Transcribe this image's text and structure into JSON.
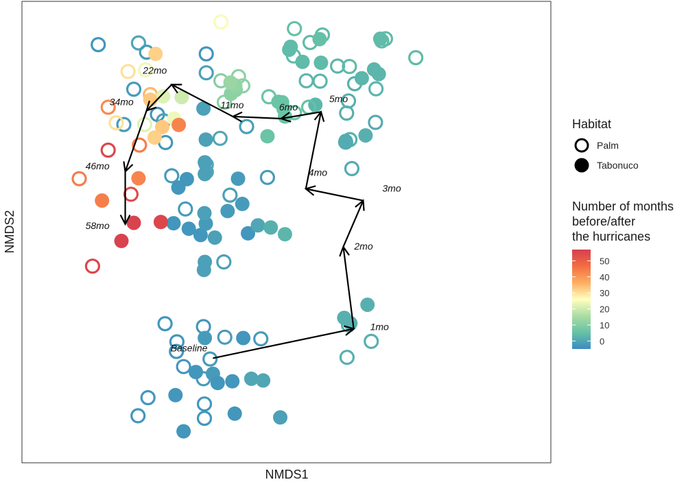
{
  "chart_data": {
    "type": "scatter",
    "xlabel": "NMDS1",
    "ylabel": "NMDS2",
    "xlim": [
      0,
      1
    ],
    "ylim": [
      0,
      1
    ],
    "axis_ticks_shown": false,
    "grid": false,
    "legend_habitat": {
      "title": "Habitat",
      "items": [
        {
          "label": "Palm",
          "shape": "open-circle"
        },
        {
          "label": "Tabonuco",
          "shape": "filled-circle"
        }
      ]
    },
    "legend_colorbar": {
      "title_lines": [
        "Number of months",
        "before/after",
        "the hurricanes"
      ],
      "min": -5,
      "max": 57,
      "ticks": [
        0,
        10,
        20,
        30,
        40,
        50
      ],
      "tick_labels": [
        "0",
        "10",
        "20",
        "30",
        "40",
        "50"
      ]
    },
    "colors": {
      "stops": [
        "#3B8BC2",
        "#66C2A5",
        "#ABDDA4",
        "#FFFFBF",
        "#FDAE61",
        "#F46D43",
        "#D53E4F"
      ],
      "axis": "#333333",
      "arrow": "#000000"
    },
    "points": [
      {
        "x": 0.103,
        "y": 0.946,
        "m": -3,
        "h": "Palm"
      },
      {
        "x": 0.188,
        "y": 0.95,
        "m": 0,
        "h": "Palm"
      },
      {
        "x": 0.205,
        "y": 0.928,
        "m": -2,
        "h": "Palm"
      },
      {
        "x": 0.331,
        "y": 0.924,
        "m": -3,
        "h": "Palm"
      },
      {
        "x": 0.331,
        "y": 0.879,
        "m": -1,
        "h": "Palm"
      },
      {
        "x": 0.178,
        "y": 0.84,
        "m": -2,
        "h": "Palm"
      },
      {
        "x": 0.228,
        "y": 0.78,
        "m": -3,
        "h": "Palm"
      },
      {
        "x": 0.157,
        "y": 0.756,
        "m": -2,
        "h": "Palm"
      },
      {
        "x": 0.241,
        "y": 0.765,
        "m": -1,
        "h": "Palm"
      },
      {
        "x": 0.245,
        "y": 0.713,
        "m": -3,
        "h": "Palm"
      },
      {
        "x": 0.258,
        "y": 0.634,
        "m": -2,
        "h": "Palm"
      },
      {
        "x": 0.331,
        "y": 0.66,
        "m": 0,
        "h": "Palm"
      },
      {
        "x": 0.36,
        "y": 0.723,
        "m": 0,
        "h": "Palm"
      },
      {
        "x": 0.416,
        "y": 0.751,
        "m": -1,
        "h": "Palm"
      },
      {
        "x": 0.46,
        "y": 0.63,
        "m": -2,
        "h": "Palm"
      },
      {
        "x": 0.287,
        "y": 0.555,
        "m": -2,
        "h": "Palm"
      },
      {
        "x": 0.381,
        "y": 0.588,
        "m": -1,
        "h": "Palm"
      },
      {
        "x": 0.294,
        "y": 0.508,
        "m": -3,
        "h": "Tabonuco"
      },
      {
        "x": 0.319,
        "y": 0.493,
        "m": -3,
        "h": "Tabonuco"
      },
      {
        "x": 0.262,
        "y": 0.521,
        "m": -3,
        "h": "Tabonuco"
      },
      {
        "x": 0.33,
        "y": 0.52,
        "m": -2,
        "h": "Tabonuco"
      },
      {
        "x": 0.349,
        "y": 0.487,
        "m": -1,
        "h": "Tabonuco"
      },
      {
        "x": 0.376,
        "y": 0.55,
        "m": -2,
        "h": "Tabonuco"
      },
      {
        "x": 0.419,
        "y": 0.497,
        "m": -3,
        "h": "Tabonuco"
      },
      {
        "x": 0.44,
        "y": 0.516,
        "m": 0,
        "h": "Tabonuco"
      },
      {
        "x": 0.467,
        "y": 0.511,
        "m": 2,
        "h": "Tabonuco"
      },
      {
        "x": 0.497,
        "y": 0.495,
        "m": 3,
        "h": "Tabonuco"
      },
      {
        "x": 0.332,
        "y": 0.643,
        "m": 0,
        "h": "Tabonuco"
      },
      {
        "x": 0.328,
        "y": 0.638,
        "m": -1,
        "h": "Tabonuco"
      },
      {
        "x": 0.327,
        "y": 0.545,
        "m": -1,
        "h": "Tabonuco"
      },
      {
        "x": 0.407,
        "y": 0.567,
        "m": -2,
        "h": "Tabonuco"
      },
      {
        "x": 0.33,
        "y": 0.72,
        "m": -1,
        "h": "Tabonuco"
      },
      {
        "x": 0.328,
        "y": 0.666,
        "m": -1,
        "h": "Tabonuco"
      },
      {
        "x": 0.398,
        "y": 0.627,
        "m": -2,
        "h": "Tabonuco"
      },
      {
        "x": 0.272,
        "y": 0.606,
        "m": -3,
        "h": "Tabonuco"
      },
      {
        "x": 0.29,
        "y": 0.626,
        "m": -3,
        "h": "Tabonuco"
      },
      {
        "x": 0.325,
        "y": 0.794,
        "m": -1,
        "h": "Tabonuco"
      },
      {
        "x": 0.638,
        "y": 0.651,
        "m": 1,
        "h": "Palm"
      },
      {
        "x": 0.634,
        "y": 0.72,
        "m": 2,
        "h": "Palm"
      },
      {
        "x": 0.688,
        "y": 0.761,
        "m": 1,
        "h": "Palm"
      },
      {
        "x": 0.627,
        "y": 0.783,
        "m": 2,
        "h": "Palm"
      },
      {
        "x": 0.644,
        "y": 0.853,
        "m": 2,
        "h": "Palm"
      },
      {
        "x": 0.542,
        "y": 0.86,
        "m": 3,
        "h": "Palm"
      },
      {
        "x": 0.571,
        "y": 0.859,
        "m": 3,
        "h": "Palm"
      },
      {
        "x": 0.608,
        "y": 0.895,
        "m": 3,
        "h": "Palm"
      },
      {
        "x": 0.631,
        "y": 0.812,
        "m": 2,
        "h": "Palm"
      },
      {
        "x": 0.625,
        "y": 0.714,
        "m": 1,
        "h": "Palm"
      },
      {
        "x": 0.689,
        "y": 0.841,
        "m": 3,
        "h": "Palm"
      },
      {
        "x": 0.709,
        "y": 0.96,
        "m": 4,
        "h": "Palm"
      },
      {
        "x": 0.773,
        "y": 0.915,
        "m": 4,
        "h": "Palm"
      },
      {
        "x": 0.701,
        "y": 0.955,
        "m": 4,
        "h": "Palm"
      },
      {
        "x": 0.625,
        "y": 0.717,
        "m": 1,
        "h": "Tabonuco"
      },
      {
        "x": 0.667,
        "y": 0.73,
        "m": 2,
        "h": "Tabonuco"
      },
      {
        "x": 0.561,
        "y": 0.803,
        "m": 3,
        "h": "Tabonuco"
      },
      {
        "x": 0.695,
        "y": 0.876,
        "m": 3,
        "h": "Tabonuco"
      },
      {
        "x": 0.685,
        "y": 0.887,
        "m": 3,
        "h": "Tabonuco"
      },
      {
        "x": 0.659,
        "y": 0.866,
        "m": 3,
        "h": "Tabonuco"
      },
      {
        "x": 0.573,
        "y": 0.903,
        "m": 4,
        "h": "Tabonuco"
      },
      {
        "x": 0.509,
        "y": 0.941,
        "m": 4,
        "h": "Tabonuco"
      },
      {
        "x": 0.506,
        "y": 0.934,
        "m": 4,
        "h": "Tabonuco"
      },
      {
        "x": 0.534,
        "y": 0.905,
        "m": 4,
        "h": "Tabonuco"
      },
      {
        "x": 0.698,
        "y": 0.96,
        "m": 4,
        "h": "Tabonuco"
      },
      {
        "x": 0.515,
        "y": 0.919,
        "m": 4,
        "h": "Palm"
      },
      {
        "x": 0.55,
        "y": 0.951,
        "m": 4,
        "h": "Palm"
      },
      {
        "x": 0.517,
        "y": 0.984,
        "m": 5,
        "h": "Palm"
      },
      {
        "x": 0.576,
        "y": 0.969,
        "m": 4,
        "h": "Palm"
      },
      {
        "x": 0.633,
        "y": 0.894,
        "m": 4,
        "h": "Palm"
      },
      {
        "x": 0.547,
        "y": 0.797,
        "m": 5,
        "h": "Palm"
      },
      {
        "x": 0.57,
        "y": 0.959,
        "m": 5,
        "h": "Tabonuco"
      },
      {
        "x": 0.491,
        "y": 0.809,
        "m": 6,
        "h": "Tabonuco"
      },
      {
        "x": 0.494,
        "y": 0.793,
        "m": 6,
        "h": "Tabonuco"
      },
      {
        "x": 0.497,
        "y": 0.775,
        "m": 6,
        "h": "Tabonuco"
      },
      {
        "x": 0.483,
        "y": 0.81,
        "m": 6,
        "h": "Tabonuco"
      },
      {
        "x": 0.46,
        "y": 0.728,
        "m": 6,
        "h": "Tabonuco"
      },
      {
        "x": 0.463,
        "y": 0.822,
        "m": 6,
        "h": "Palm"
      },
      {
        "x": 0.517,
        "y": 0.784,
        "m": 6,
        "h": "Palm"
      },
      {
        "x": 0.362,
        "y": 0.86,
        "m": 10,
        "h": "Palm"
      },
      {
        "x": 0.399,
        "y": 0.87,
        "m": 11,
        "h": "Palm"
      },
      {
        "x": 0.408,
        "y": 0.848,
        "m": 11,
        "h": "Palm"
      },
      {
        "x": 0.369,
        "y": 0.809,
        "m": 11,
        "h": "Palm"
      },
      {
        "x": 0.383,
        "y": 0.829,
        "m": 11,
        "h": "Tabonuco"
      },
      {
        "x": 0.393,
        "y": 0.838,
        "m": 11,
        "h": "Tabonuco"
      },
      {
        "x": 0.392,
        "y": 0.849,
        "m": 12,
        "h": "Tabonuco"
      },
      {
        "x": 0.382,
        "y": 0.856,
        "m": 13,
        "h": "Tabonuco"
      },
      {
        "x": 0.362,
        "y": 1.0,
        "m": 25,
        "h": "Palm"
      },
      {
        "x": 0.203,
        "y": 0.886,
        "m": 24,
        "h": "Palm"
      },
      {
        "x": 0.166,
        "y": 0.882,
        "m": 30,
        "h": "Palm"
      },
      {
        "x": 0.201,
        "y": 0.756,
        "m": 22,
        "h": "Palm"
      },
      {
        "x": 0.213,
        "y": 0.827,
        "m": 35,
        "h": "Palm"
      },
      {
        "x": 0.141,
        "y": 0.76,
        "m": 30,
        "h": "Palm"
      },
      {
        "x": 0.279,
        "y": 0.821,
        "m": 20,
        "h": "Tabonuco"
      },
      {
        "x": 0.24,
        "y": 0.823,
        "m": 22,
        "h": "Tabonuco"
      },
      {
        "x": 0.263,
        "y": 0.77,
        "m": 24,
        "h": "Tabonuco"
      },
      {
        "x": 0.224,
        "y": 0.924,
        "m": 32,
        "h": "Tabonuco"
      },
      {
        "x": 0.238,
        "y": 0.75,
        "m": 33,
        "h": "Tabonuco"
      },
      {
        "x": 0.222,
        "y": 0.725,
        "m": 32,
        "h": "Tabonuco"
      },
      {
        "x": 0.213,
        "y": 0.815,
        "m": 33,
        "h": "Tabonuco"
      },
      {
        "x": 0.124,
        "y": 0.797,
        "m": 42,
        "h": "Palm"
      },
      {
        "x": 0.19,
        "y": 0.707,
        "m": 44,
        "h": "Palm"
      },
      {
        "x": 0.063,
        "y": 0.627,
        "m": 44,
        "h": "Palm"
      },
      {
        "x": 0.124,
        "y": 0.695,
        "m": 55,
        "h": "Palm"
      },
      {
        "x": 0.172,
        "y": 0.59,
        "m": 54,
        "h": "Palm"
      },
      {
        "x": 0.091,
        "y": 0.419,
        "m": 55,
        "h": "Palm"
      },
      {
        "x": 0.273,
        "y": 0.755,
        "m": 43,
        "h": "Tabonuco"
      },
      {
        "x": 0.188,
        "y": 0.628,
        "m": 43,
        "h": "Tabonuco"
      },
      {
        "x": 0.111,
        "y": 0.575,
        "m": 44,
        "h": "Tabonuco"
      },
      {
        "x": 0.235,
        "y": 0.524,
        "m": 55,
        "h": "Tabonuco"
      },
      {
        "x": 0.178,
        "y": 0.522,
        "m": 56,
        "h": "Tabonuco"
      },
      {
        "x": 0.152,
        "y": 0.479,
        "m": 56,
        "h": "Tabonuco"
      },
      {
        "x": 0.244,
        "y": 0.282,
        "m": -3,
        "h": "Palm"
      },
      {
        "x": 0.269,
        "y": 0.239,
        "m": -3,
        "h": "Palm"
      },
      {
        "x": 0.268,
        "y": 0.216,
        "m": -3,
        "h": "Palm"
      },
      {
        "x": 0.283,
        "y": 0.18,
        "m": -3,
        "h": "Palm"
      },
      {
        "x": 0.208,
        "y": 0.106,
        "m": -3,
        "h": "Palm"
      },
      {
        "x": 0.187,
        "y": 0.063,
        "m": -3,
        "h": "Palm"
      },
      {
        "x": 0.325,
        "y": 0.275,
        "m": -3,
        "h": "Palm"
      },
      {
        "x": 0.37,
        "y": 0.25,
        "m": -2,
        "h": "Palm"
      },
      {
        "x": 0.446,
        "y": 0.246,
        "m": -2,
        "h": "Palm"
      },
      {
        "x": 0.339,
        "y": 0.198,
        "m": -2,
        "h": "Palm"
      },
      {
        "x": 0.325,
        "y": 0.151,
        "m": -2,
        "h": "Palm"
      },
      {
        "x": 0.327,
        "y": 0.091,
        "m": -3,
        "h": "Palm"
      },
      {
        "x": 0.368,
        "y": 0.429,
        "m": -1,
        "h": "Palm"
      },
      {
        "x": 0.327,
        "y": 0.057,
        "m": -3,
        "h": "Palm"
      },
      {
        "x": 0.328,
        "y": 0.429,
        "m": -1,
        "h": "Tabonuco"
      },
      {
        "x": 0.326,
        "y": 0.41,
        "m": -1,
        "h": "Tabonuco"
      },
      {
        "x": 0.328,
        "y": 0.248,
        "m": -2,
        "h": "Tabonuco"
      },
      {
        "x": 0.409,
        "y": 0.248,
        "m": -3,
        "h": "Tabonuco"
      },
      {
        "x": 0.309,
        "y": 0.167,
        "m": -3,
        "h": "Tabonuco"
      },
      {
        "x": 0.345,
        "y": 0.163,
        "m": -2,
        "h": "Tabonuco"
      },
      {
        "x": 0.355,
        "y": 0.141,
        "m": -3,
        "h": "Tabonuco"
      },
      {
        "x": 0.386,
        "y": 0.145,
        "m": -3,
        "h": "Tabonuco"
      },
      {
        "x": 0.426,
        "y": 0.151,
        "m": 0,
        "h": "Tabonuco"
      },
      {
        "x": 0.451,
        "y": 0.147,
        "m": 0,
        "h": "Tabonuco"
      },
      {
        "x": 0.266,
        "y": 0.112,
        "m": -3,
        "h": "Tabonuco"
      },
      {
        "x": 0.391,
        "y": 0.068,
        "m": -3,
        "h": "Tabonuco"
      },
      {
        "x": 0.487,
        "y": 0.059,
        "m": -1,
        "h": "Tabonuco"
      },
      {
        "x": 0.283,
        "y": 0.026,
        "m": -3,
        "h": "Tabonuco"
      },
      {
        "x": 0.631,
        "y": 0.279,
        "m": 1,
        "h": "Palm"
      },
      {
        "x": 0.679,
        "y": 0.24,
        "m": 2,
        "h": "Palm"
      },
      {
        "x": 0.628,
        "y": 0.202,
        "m": 2,
        "h": "Palm"
      },
      {
        "x": 0.622,
        "y": 0.296,
        "m": 2,
        "h": "Tabonuco"
      },
      {
        "x": 0.635,
        "y": 0.283,
        "m": 2,
        "h": "Tabonuco"
      },
      {
        "x": 0.671,
        "y": 0.327,
        "m": 2,
        "h": "Tabonuco"
      }
    ],
    "trajectory": [
      {
        "label": "Baseline",
        "x": 0.345,
        "y": 0.2
      },
      {
        "label": "1mo",
        "x": 0.642,
        "y": 0.27
      },
      {
        "label": "2mo",
        "x": 0.62,
        "y": 0.465
      },
      {
        "label": "3mo",
        "x": 0.662,
        "y": 0.575
      },
      {
        "label": "4mo",
        "x": 0.541,
        "y": 0.603
      },
      {
        "label": "5mo",
        "x": 0.573,
        "y": 0.786
      },
      {
        "label": "6mo",
        "x": 0.489,
        "y": 0.77
      },
      {
        "label": "11mo",
        "x": 0.387,
        "y": 0.775
      },
      {
        "label": "22mo",
        "x": 0.258,
        "y": 0.851
      },
      {
        "label": "34mo",
        "x": 0.205,
        "y": 0.789
      },
      {
        "label": "46mo",
        "x": 0.16,
        "y": 0.644
      },
      {
        "label": "58mo",
        "x": 0.16,
        "y": 0.519
      }
    ]
  }
}
